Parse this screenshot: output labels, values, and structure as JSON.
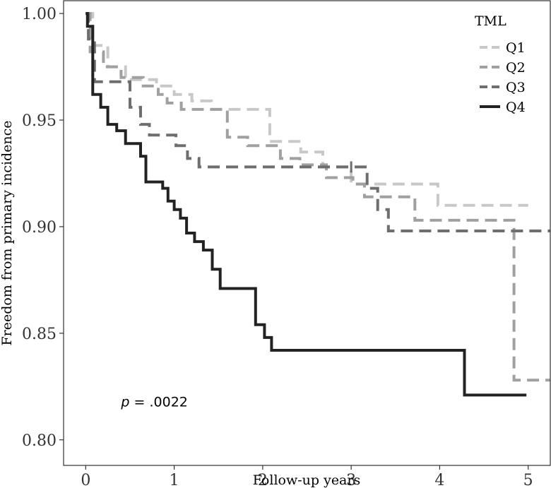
{
  "chart_data": {
    "type": "line",
    "subtype": "kaplan-meier step",
    "xlabel": "Follow-up years",
    "ylabel": "Freedom from primary incidence",
    "xlim": [
      -0.25,
      5.25
    ],
    "ylim": [
      0.788,
      1.006
    ],
    "x_ticks": [
      0,
      1,
      2,
      3,
      4,
      5
    ],
    "x_tick_labels": [
      "0",
      "1",
      "2",
      "3",
      "4",
      "5"
    ],
    "y_ticks": [
      0.8,
      0.85,
      0.9,
      0.95,
      1.0
    ],
    "y_tick_labels": [
      "0.80",
      "0.85",
      "0.90",
      "0.95",
      "1.00"
    ],
    "grid": false,
    "legend": {
      "title": "TML",
      "position": "top-right, inside plot"
    },
    "annotation": {
      "p_symbol": "p",
      "text": " = .0022",
      "x": 0.4,
      "y": 0.818
    },
    "series": [
      {
        "name": "Q1",
        "color": "#c8c8c8",
        "line_style": "dashed",
        "points": [
          [
            0,
            1.0
          ],
          [
            0.08,
            1.0
          ],
          [
            0.08,
            0.985
          ],
          [
            0.25,
            0.985
          ],
          [
            0.25,
            0.975
          ],
          [
            0.45,
            0.975
          ],
          [
            0.45,
            0.969
          ],
          [
            0.8,
            0.969
          ],
          [
            0.8,
            0.966
          ],
          [
            1.0,
            0.966
          ],
          [
            1.0,
            0.962
          ],
          [
            1.2,
            0.962
          ],
          [
            1.2,
            0.959
          ],
          [
            1.42,
            0.959
          ],
          [
            1.42,
            0.955
          ],
          [
            2.08,
            0.955
          ],
          [
            2.08,
            0.94
          ],
          [
            2.43,
            0.94
          ],
          [
            2.43,
            0.935
          ],
          [
            2.68,
            0.935
          ],
          [
            2.68,
            0.928
          ],
          [
            3.0,
            0.928
          ],
          [
            3.0,
            0.92
          ],
          [
            3.98,
            0.92
          ],
          [
            3.98,
            0.91
          ],
          [
            5.0,
            0.91
          ]
        ],
        "censor_marks": []
      },
      {
        "name": "Q2",
        "color": "#a0a0a0",
        "line_style": "dashed",
        "points": [
          [
            0,
            1.0
          ],
          [
            0.05,
            1.0
          ],
          [
            0.05,
            0.982
          ],
          [
            0.2,
            0.982
          ],
          [
            0.2,
            0.975
          ],
          [
            0.4,
            0.975
          ],
          [
            0.4,
            0.97
          ],
          [
            0.65,
            0.97
          ],
          [
            0.65,
            0.966
          ],
          [
            0.82,
            0.966
          ],
          [
            0.82,
            0.962
          ],
          [
            0.92,
            0.962
          ],
          [
            0.92,
            0.958
          ],
          [
            1.08,
            0.958
          ],
          [
            1.08,
            0.955
          ],
          [
            1.6,
            0.955
          ],
          [
            1.6,
            0.942
          ],
          [
            1.83,
            0.942
          ],
          [
            1.83,
            0.938
          ],
          [
            2.2,
            0.938
          ],
          [
            2.2,
            0.932
          ],
          [
            2.42,
            0.932
          ],
          [
            2.42,
            0.929
          ],
          [
            2.72,
            0.929
          ],
          [
            2.72,
            0.923
          ],
          [
            3.02,
            0.923
          ],
          [
            3.02,
            0.92
          ],
          [
            3.15,
            0.92
          ],
          [
            3.15,
            0.914
          ],
          [
            3.72,
            0.914
          ],
          [
            3.72,
            0.903
          ],
          [
            4.84,
            0.903
          ],
          [
            4.84,
            0.828
          ],
          [
            5.25,
            0.828
          ]
        ],
        "censor_marks": []
      },
      {
        "name": "Q3",
        "color": "#6e6e6e",
        "line_style": "dashed",
        "points": [
          [
            0,
            1.0
          ],
          [
            0.03,
            1.0
          ],
          [
            0.03,
            0.988
          ],
          [
            0.1,
            0.988
          ],
          [
            0.1,
            0.968
          ],
          [
            0.5,
            0.968
          ],
          [
            0.5,
            0.956
          ],
          [
            0.62,
            0.956
          ],
          [
            0.62,
            0.948
          ],
          [
            0.72,
            0.948
          ],
          [
            0.72,
            0.943
          ],
          [
            1.02,
            0.943
          ],
          [
            1.02,
            0.938
          ],
          [
            1.15,
            0.938
          ],
          [
            1.15,
            0.932
          ],
          [
            1.28,
            0.932
          ],
          [
            1.28,
            0.928
          ],
          [
            3.18,
            0.928
          ],
          [
            3.18,
            0.918
          ],
          [
            3.3,
            0.918
          ],
          [
            3.3,
            0.908
          ],
          [
            3.42,
            0.908
          ],
          [
            3.42,
            0.898
          ],
          [
            5.25,
            0.898
          ]
        ],
        "censor_marks": [
          [
            3.0,
            0.928
          ]
        ]
      },
      {
        "name": "Q4",
        "color": "#222222",
        "line_style": "solid",
        "points": [
          [
            0,
            1.0
          ],
          [
            0.02,
            1.0
          ],
          [
            0.02,
            0.994
          ],
          [
            0.08,
            0.994
          ],
          [
            0.08,
            0.962
          ],
          [
            0.17,
            0.962
          ],
          [
            0.17,
            0.956
          ],
          [
            0.25,
            0.956
          ],
          [
            0.25,
            0.948
          ],
          [
            0.35,
            0.948
          ],
          [
            0.35,
            0.945
          ],
          [
            0.45,
            0.945
          ],
          [
            0.45,
            0.939
          ],
          [
            0.62,
            0.939
          ],
          [
            0.62,
            0.933
          ],
          [
            0.68,
            0.933
          ],
          [
            0.68,
            0.921
          ],
          [
            0.87,
            0.921
          ],
          [
            0.87,
            0.918
          ],
          [
            0.93,
            0.918
          ],
          [
            0.93,
            0.912
          ],
          [
            1.0,
            0.912
          ],
          [
            1.0,
            0.908
          ],
          [
            1.07,
            0.908
          ],
          [
            1.07,
            0.904
          ],
          [
            1.14,
            0.904
          ],
          [
            1.14,
            0.897
          ],
          [
            1.23,
            0.897
          ],
          [
            1.23,
            0.893
          ],
          [
            1.33,
            0.893
          ],
          [
            1.33,
            0.889
          ],
          [
            1.43,
            0.889
          ],
          [
            1.43,
            0.88
          ],
          [
            1.52,
            0.88
          ],
          [
            1.52,
            0.871
          ],
          [
            1.92,
            0.871
          ],
          [
            1.92,
            0.854
          ],
          [
            2.02,
            0.854
          ],
          [
            2.02,
            0.848
          ],
          [
            2.1,
            0.848
          ],
          [
            2.1,
            0.842
          ],
          [
            4.28,
            0.842
          ],
          [
            4.28,
            0.821
          ],
          [
            4.98,
            0.821
          ]
        ],
        "censor_marks": []
      }
    ]
  }
}
